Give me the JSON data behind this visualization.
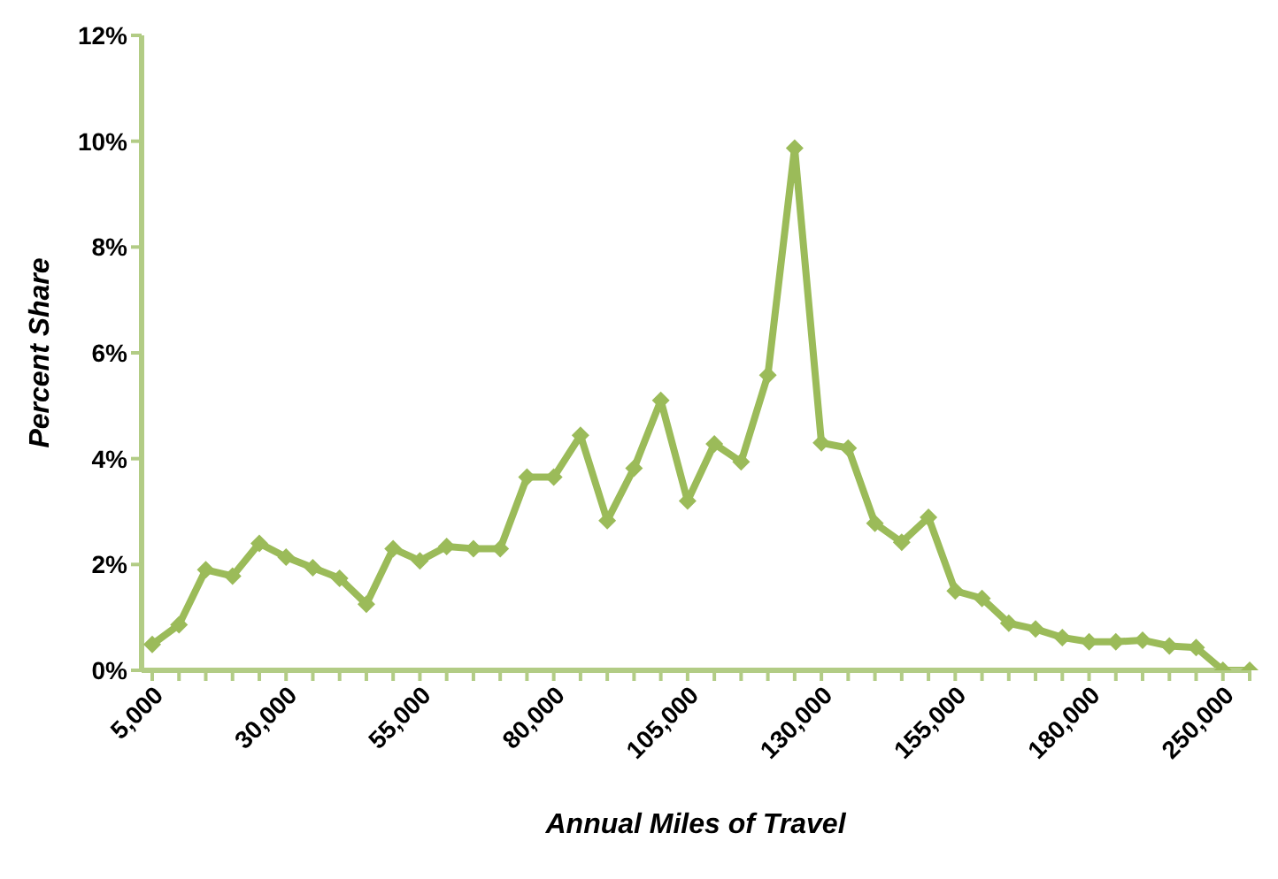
{
  "chart_data": {
    "type": "line",
    "xlabel": "Annual Miles of Travel",
    "ylabel": "Percent Share",
    "categories": [
      "5,000",
      null,
      null,
      null,
      null,
      "30,000",
      null,
      null,
      null,
      null,
      "55,000",
      null,
      null,
      null,
      null,
      "80,000",
      null,
      null,
      null,
      null,
      "105,000",
      null,
      null,
      null,
      null,
      "130,000",
      null,
      null,
      null,
      null,
      "155,000",
      null,
      null,
      null,
      null,
      "180,000",
      null,
      null,
      null,
      null,
      "250,000",
      null
    ],
    "series": [
      {
        "color": "#9bbb59",
        "values": [
          0.49,
          0.86,
          1.9,
          1.78,
          2.4,
          2.14,
          1.94,
          1.74,
          1.25,
          2.3,
          2.07,
          2.34,
          2.3,
          2.3,
          3.65,
          3.65,
          4.44,
          2.83,
          3.82,
          5.1,
          3.2,
          4.28,
          3.94,
          5.58,
          9.87,
          4.3,
          4.2,
          2.78,
          2.42,
          2.89,
          1.5,
          1.36,
          0.89,
          0.78,
          0.62,
          0.54,
          0.54,
          0.57,
          0.46,
          0.43,
          0,
          0
        ]
      }
    ],
    "ylim": [
      0,
      12
    ],
    "yticks": [
      {
        "value": 0,
        "label": "0%"
      },
      {
        "value": 2,
        "label": "2%"
      },
      {
        "value": 4,
        "label": "4%"
      },
      {
        "value": 6,
        "label": "6%"
      },
      {
        "value": 8,
        "label": "8%"
      },
      {
        "value": 10,
        "label": "10%"
      },
      {
        "value": 12,
        "label": "12%"
      }
    ],
    "grid": false,
    "legend": false,
    "marker": "diamond",
    "line_style": "solid"
  }
}
